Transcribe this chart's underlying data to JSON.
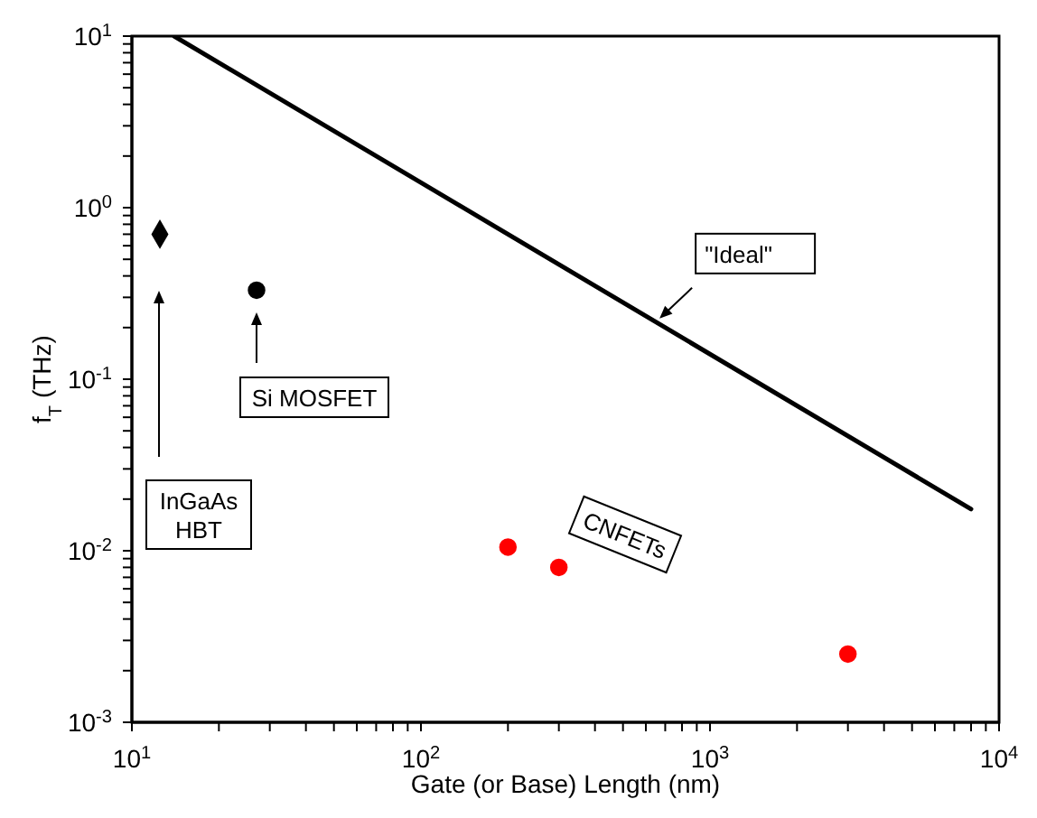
{
  "chart_data": {
    "type": "scatter",
    "xlabel": "Gate (or Base) Length  (nm)",
    "ylabel": "f$_{T}$  (THz)",
    "log": "xy",
    "xlim": [
      10,
      10000
    ],
    "ylim": [
      0.001,
      10
    ],
    "xticks": [
      {
        "value": 10,
        "label": "10$^{1}$"
      },
      {
        "value": 20,
        "label": null
      },
      {
        "value": 30,
        "label": null
      },
      {
        "value": 40,
        "label": null
      },
      {
        "value": 50,
        "label": null
      },
      {
        "value": 60,
        "label": null
      },
      {
        "value": 70,
        "label": null
      },
      {
        "value": 80,
        "label": null
      },
      {
        "value": 90,
        "label": null
      },
      {
        "value": 100,
        "label": "10$^{2}$"
      },
      {
        "value": 200,
        "label": null
      },
      {
        "value": 300,
        "label": null
      },
      {
        "value": 400,
        "label": null
      },
      {
        "value": 500,
        "label": null
      },
      {
        "value": 600,
        "label": null
      },
      {
        "value": 700,
        "label": null
      },
      {
        "value": 800,
        "label": null
      },
      {
        "value": 900,
        "label": null
      },
      {
        "value": 1000,
        "label": "10$^{3}$"
      },
      {
        "value": 2000,
        "label": null
      },
      {
        "value": 3000,
        "label": null
      },
      {
        "value": 4000,
        "label": null
      },
      {
        "value": 5000,
        "label": null
      },
      {
        "value": 6000,
        "label": null
      },
      {
        "value": 7000,
        "label": null
      },
      {
        "value": 8000,
        "label": null
      },
      {
        "value": 9000,
        "label": null
      },
      {
        "value": 10000,
        "label": "10$^{4}$"
      }
    ],
    "yticks": [
      {
        "value": 0.001,
        "label": "10$^{-3}$"
      },
      {
        "value": 0.002,
        "label": null
      },
      {
        "value": 0.003,
        "label": null
      },
      {
        "value": 0.004,
        "label": null
      },
      {
        "value": 0.005,
        "label": null
      },
      {
        "value": 0.006,
        "label": null
      },
      {
        "value": 0.007,
        "label": null
      },
      {
        "value": 0.008,
        "label": null
      },
      {
        "value": 0.009,
        "label": null
      },
      {
        "value": 0.01,
        "label": "10$^{-2}$"
      },
      {
        "value": 0.02,
        "label": null
      },
      {
        "value": 0.03,
        "label": null
      },
      {
        "value": 0.04,
        "label": null
      },
      {
        "value": 0.05,
        "label": null
      },
      {
        "value": 0.06,
        "label": null
      },
      {
        "value": 0.07,
        "label": null
      },
      {
        "value": 0.08,
        "label": null
      },
      {
        "value": 0.09,
        "label": null
      },
      {
        "value": 0.1,
        "label": "10$^{-1}$"
      },
      {
        "value": 0.2,
        "label": null
      },
      {
        "value": 0.3,
        "label": null
      },
      {
        "value": 0.4,
        "label": null
      },
      {
        "value": 0.5,
        "label": null
      },
      {
        "value": 0.6,
        "label": null
      },
      {
        "value": 0.7,
        "label": null
      },
      {
        "value": 0.8,
        "label": null
      },
      {
        "value": 0.9,
        "label": null
      },
      {
        "value": 1,
        "label": "10$^{0}$"
      },
      {
        "value": 2,
        "label": null
      },
      {
        "value": 3,
        "label": null
      },
      {
        "value": 4,
        "label": null
      },
      {
        "value": 5,
        "label": null
      },
      {
        "value": 6,
        "label": null
      },
      {
        "value": 7,
        "label": null
      },
      {
        "value": 8,
        "label": null
      },
      {
        "value": 9,
        "label": null
      },
      {
        "value": 10,
        "label": "10$^{1}$"
      }
    ],
    "series": [
      {
        "type": "line",
        "color": "#000000",
        "line_style": "solid",
        "marker": "none",
        "x": [
          14,
          8000
        ],
        "values": [
          10,
          0.0175
        ]
      },
      {
        "color": "#000000",
        "marker": "diamond",
        "x": [
          12.5
        ],
        "values": [
          0.7
        ]
      },
      {
        "color": "#000000",
        "marker": "circle",
        "x": [
          27
        ],
        "values": [
          0.33
        ]
      },
      {
        "color": "#ff0000",
        "marker": "circle",
        "x": [
          200,
          300,
          3000
        ],
        "values": [
          0.0105,
          0.008,
          0.0025
        ]
      }
    ],
    "annotations": [
      {
        "text": "\"Ideal\"",
        "x": 650,
        "y": 0.215
      },
      "Si MOSFET",
      "InGaAs\nHBT",
      "CNFETs"
    ]
  }
}
